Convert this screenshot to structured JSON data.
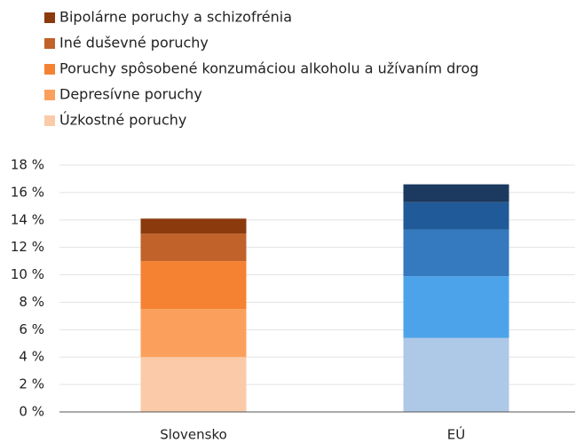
{
  "chart_data": {
    "type": "stacked_bar",
    "categories": [
      "Slovensko",
      "EÚ"
    ],
    "series": [
      {
        "name": "Úzkostné poruchy",
        "color": "#fbcaa8",
        "colors": [
          "#fbcaa8",
          "#aec8e8"
        ],
        "values": [
          4.0,
          5.4
        ]
      },
      {
        "name": "Depresívne poruchy",
        "color": "#fba05c",
        "colors": [
          "#fba05c",
          "#4da3ea"
        ],
        "values": [
          3.5,
          4.5
        ]
      },
      {
        "name": "Poruchy spôsobené konzumáciou alkoholu a užívaním drog",
        "color": "#f58232",
        "colors": [
          "#f58232",
          "#3579bf"
        ],
        "values": [
          3.5,
          3.4
        ]
      },
      {
        "name": "Iné duševné poruchy",
        "color": "#c0622a",
        "colors": [
          "#c0622a",
          "#205a98"
        ],
        "values": [
          2.0,
          2.0
        ]
      },
      {
        "name": "Bipolárne poruchy a schizofrénia",
        "color": "#8b3a0e",
        "colors": [
          "#8b3a0e",
          "#1c3a60"
        ],
        "values": [
          1.1,
          1.3
        ]
      }
    ],
    "ylim": [
      0,
      18
    ],
    "yticks": [
      {
        "value": 0,
        "label": "0 %"
      },
      {
        "value": 2,
        "label": "2 %"
      },
      {
        "value": 4,
        "label": "4 %"
      },
      {
        "value": 6,
        "label": "6 %"
      },
      {
        "value": 8,
        "label": "8 %"
      },
      {
        "value": 10,
        "label": "10 %"
      },
      {
        "value": 12,
        "label": "12 %"
      },
      {
        "value": 14,
        "label": "14 %"
      },
      {
        "value": 16,
        "label": "16 %"
      },
      {
        "value": 18,
        "label": "18 %"
      }
    ],
    "grid": true
  }
}
